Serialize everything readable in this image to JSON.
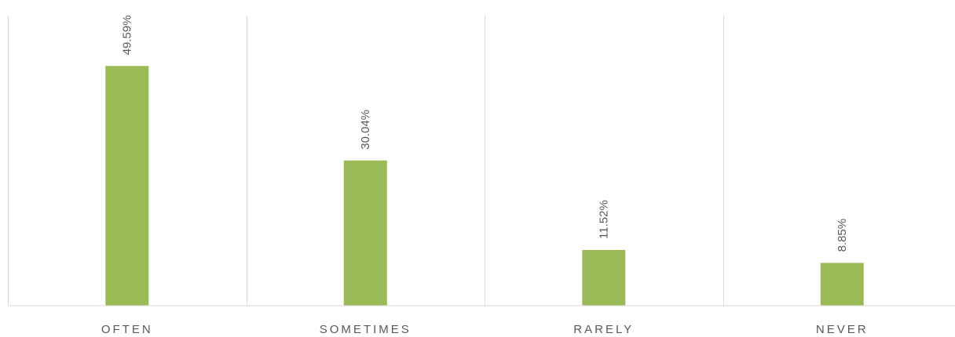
{
  "chart_data": {
    "type": "bar",
    "categories": [
      "OFTEN",
      "SOMETIMES",
      "RARELY",
      "NEVER"
    ],
    "values": [
      49.59,
      30.04,
      11.52,
      8.85
    ],
    "data_labels": [
      "49.59%",
      "30.04%",
      "11.52%",
      "8.85%"
    ],
    "unit": "%",
    "ylim": [
      0,
      60
    ],
    "grid": "vertical category separators",
    "legend": "none",
    "bar_color": "#9bbb59",
    "label_color": "#595959",
    "grid_color": "#d9d9d9"
  }
}
